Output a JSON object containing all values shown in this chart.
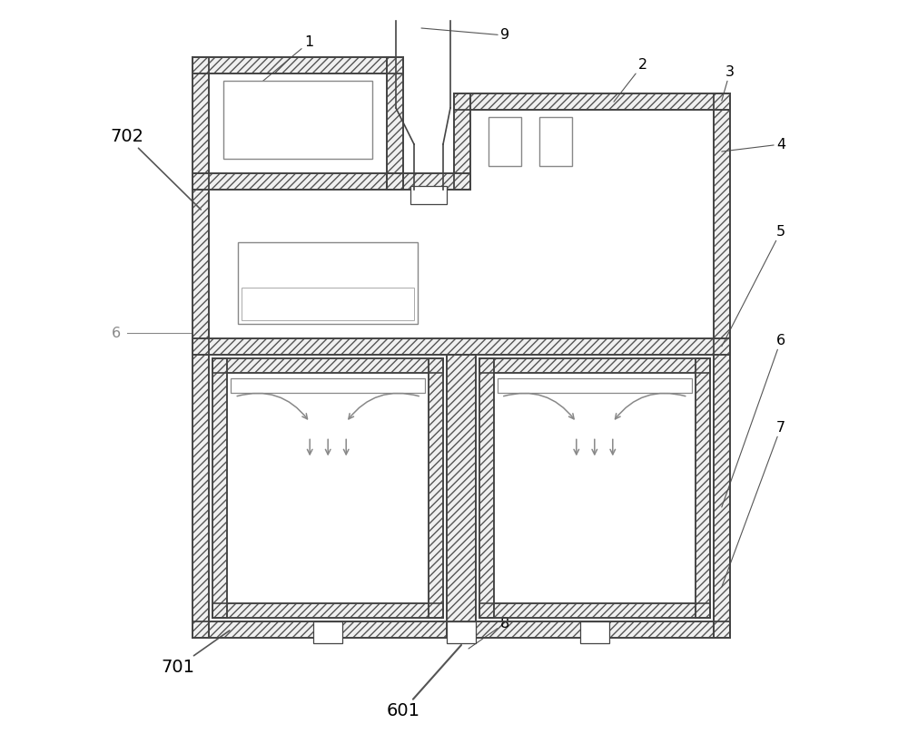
{
  "bg_color": "#ffffff",
  "lc": "#444444",
  "hc": "#aaaaaa",
  "ac": "#888888",
  "fig_width": 10.0,
  "fig_height": 8.3,
  "dpi": 100,
  "xlim": [
    0,
    100
  ],
  "ylim": [
    0,
    100
  ]
}
